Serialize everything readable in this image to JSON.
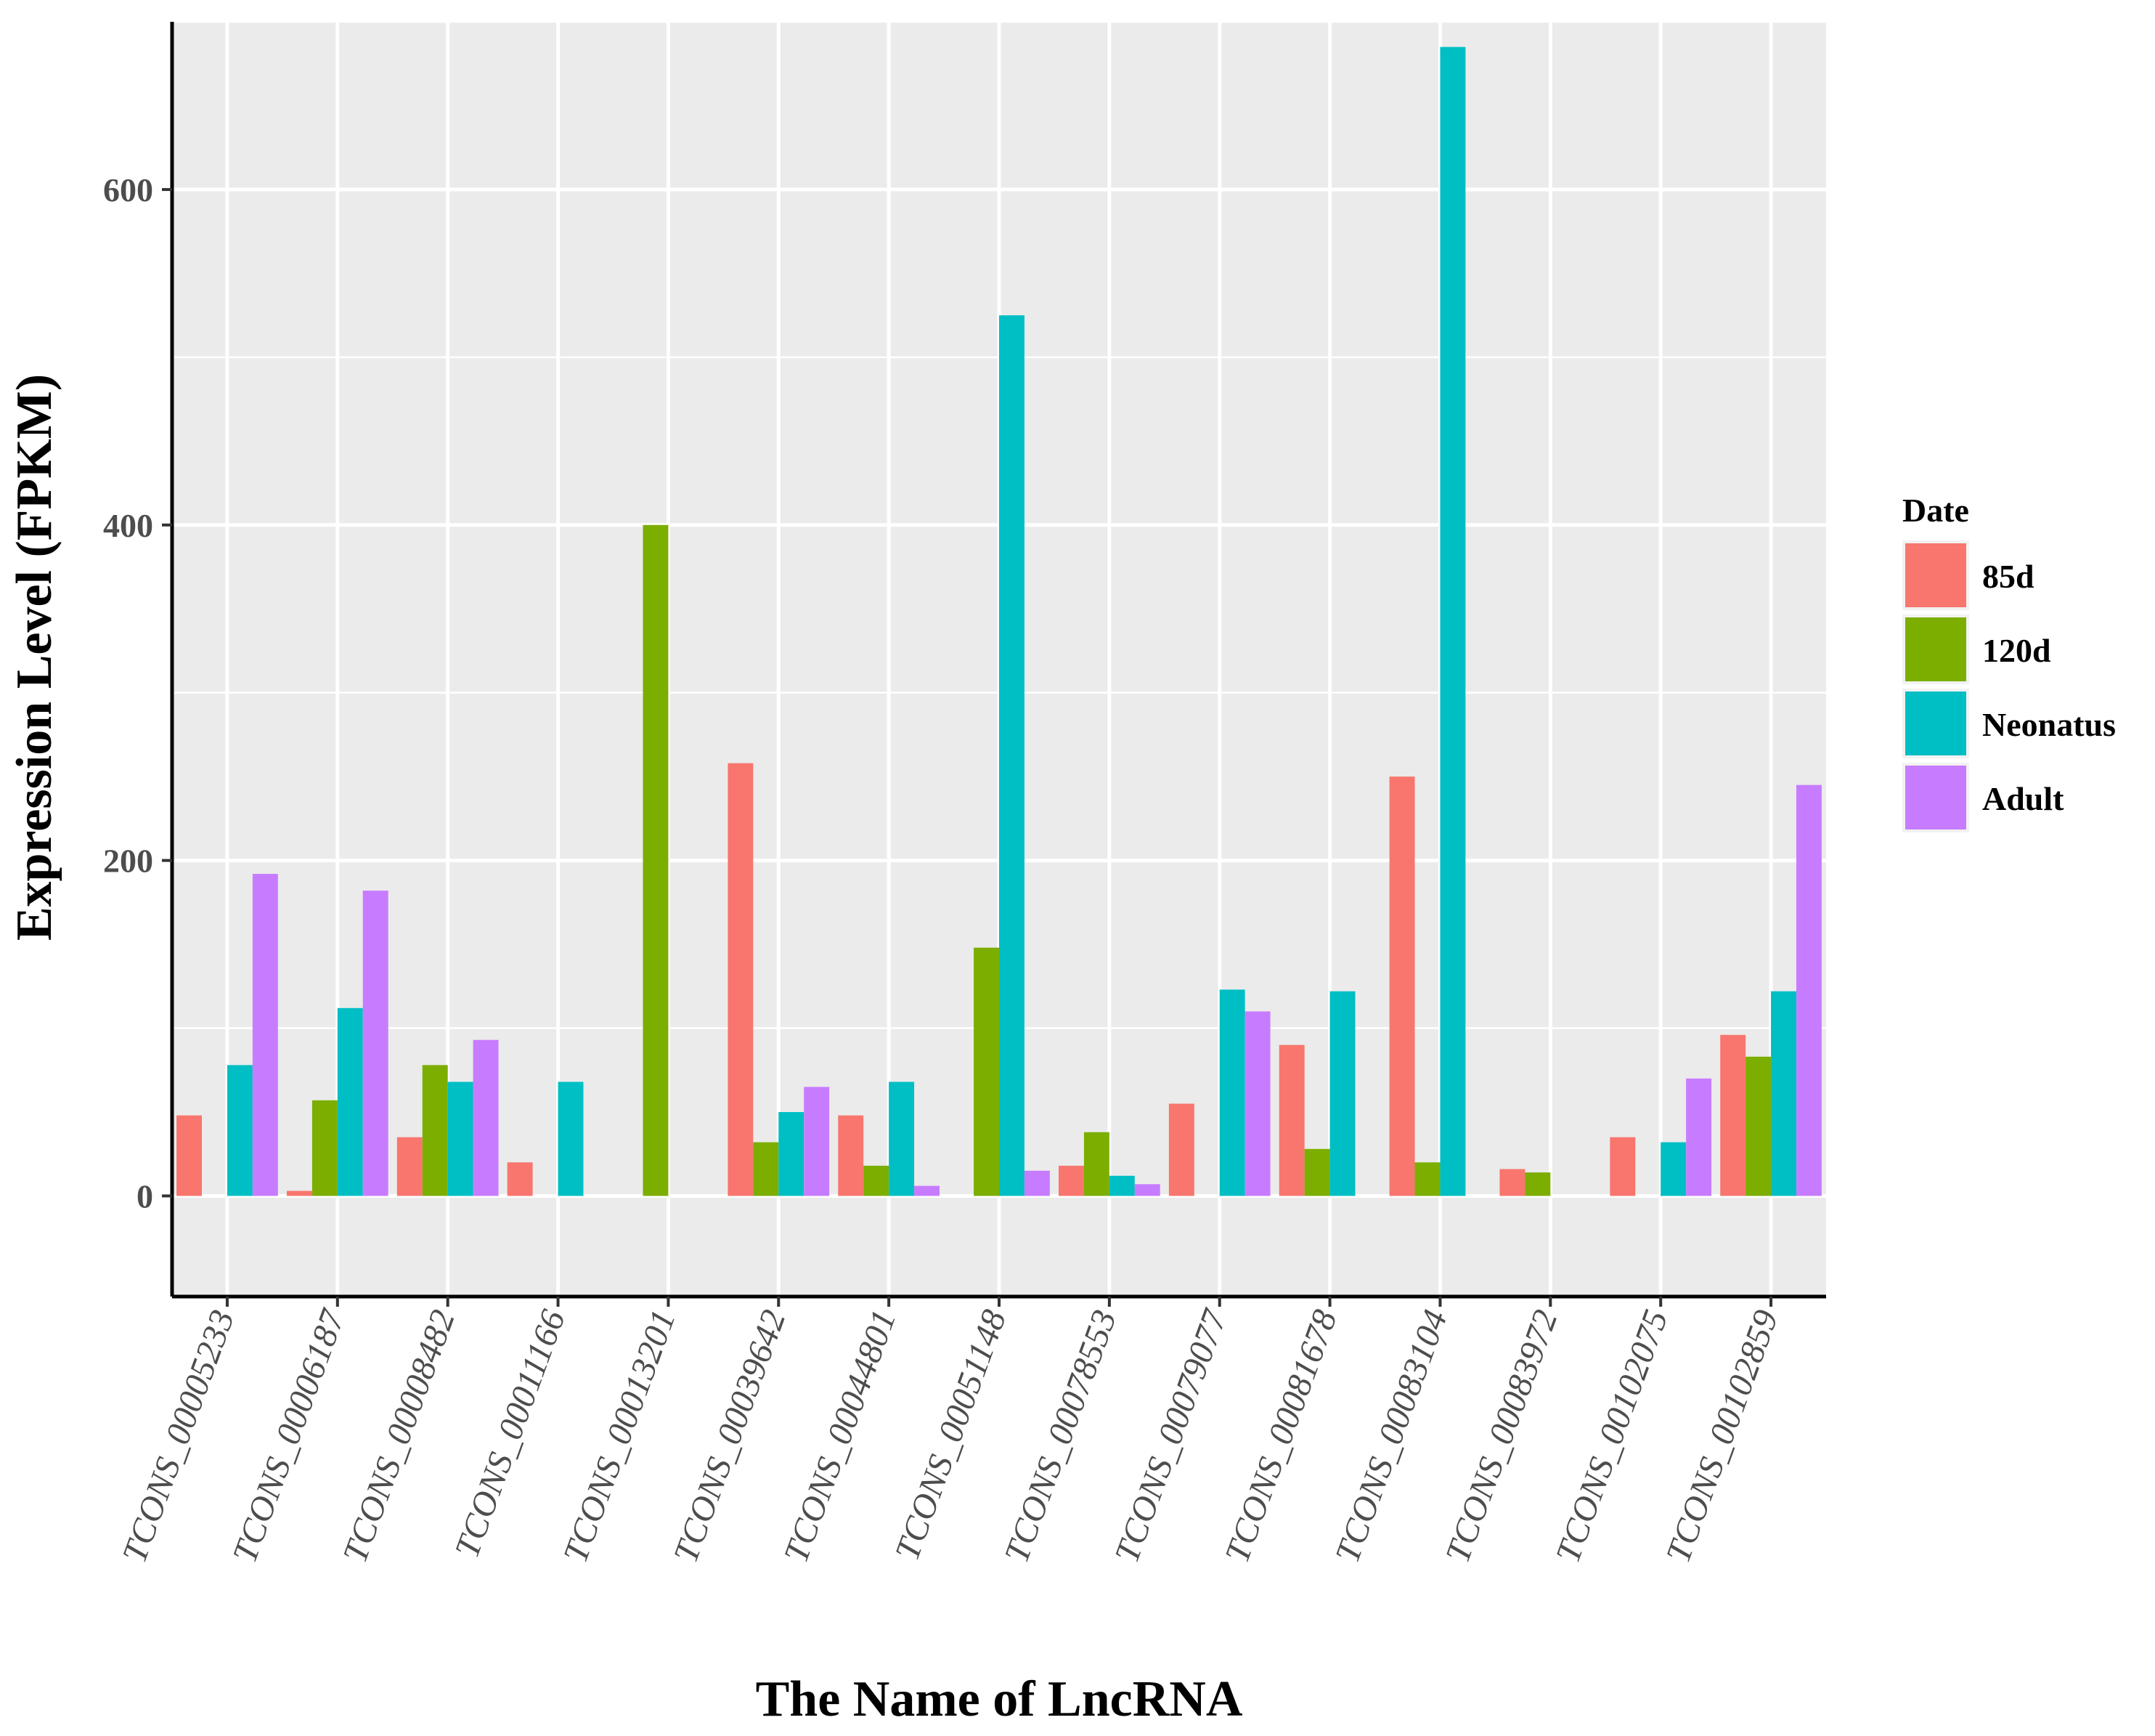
{
  "chart_data": {
    "type": "bar",
    "title": "",
    "xlabel": "The Name of LncRNA",
    "ylabel": "Expression Level (FPKM)",
    "ylim": [
      -60,
      700
    ],
    "yticks": [
      0,
      200,
      400,
      600
    ],
    "grid": true,
    "legend_title": "Date",
    "legend_position": "right",
    "categories": [
      "TCONS_00005233",
      "TCONS_00006187",
      "TCONS_00008482",
      "TCONS_00011166",
      "TCONS_00013201",
      "TCONS_00039642",
      "TCONS_00044801",
      "TCONS_00051148",
      "TCONS_00078553",
      "TCONS_00079077",
      "TCONS_00081678",
      "TCONS_00083104",
      "TCONS_00083972",
      "TCONS_00102075",
      "TCONS_00102859"
    ],
    "series": [
      {
        "name": "85d",
        "color": "#F8766D",
        "values": [
          48,
          3,
          35,
          20,
          0,
          258,
          48,
          0,
          18,
          55,
          90,
          250,
          16,
          35,
          96
        ]
      },
      {
        "name": "120d",
        "color": "#7CAE00",
        "values": [
          0,
          57,
          78,
          0,
          400,
          32,
          18,
          148,
          38,
          0,
          28,
          20,
          14,
          0,
          83
        ]
      },
      {
        "name": "Neonatus",
        "color": "#00BFC4",
        "values": [
          78,
          112,
          68,
          68,
          0,
          50,
          68,
          525,
          12,
          123,
          122,
          685,
          0,
          32,
          122
        ]
      },
      {
        "name": "Adult",
        "color": "#C77CFF",
        "values": [
          192,
          182,
          93,
          0,
          0,
          65,
          6,
          15,
          7,
          110,
          0,
          0,
          0,
          70,
          245
        ]
      }
    ]
  }
}
